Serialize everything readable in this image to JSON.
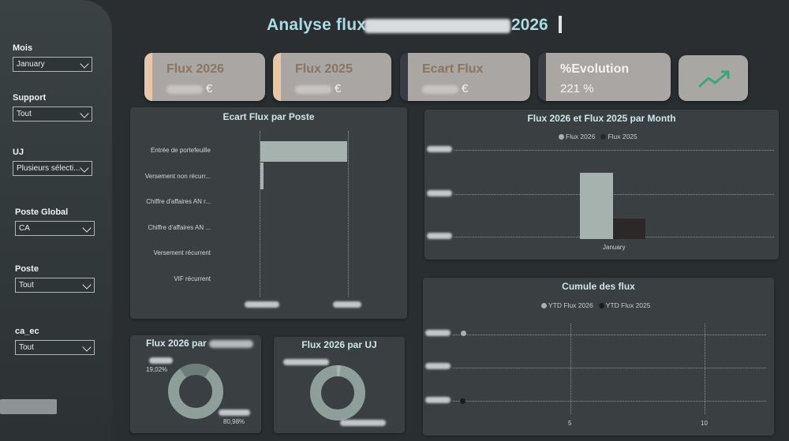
{
  "header": {
    "title_prefix": "Analyse flux",
    "title_suffix": "2026"
  },
  "slicers": [
    {
      "label": "Mois",
      "value": "January"
    },
    {
      "label": "Support",
      "value": "Tout"
    },
    {
      "label": "UJ",
      "value": "Plusieurs sélecti..."
    },
    {
      "label": "Poste Global",
      "value": "CA"
    },
    {
      "label": "Poste",
      "value": "Tout"
    },
    {
      "label": "ca_ec",
      "value": "Tout"
    }
  ],
  "cards": [
    {
      "label": "Flux 2026",
      "value": "€"
    },
    {
      "label": "Flux 2025",
      "value": "€"
    },
    {
      "label": "Ecart Flux",
      "value": "€"
    },
    {
      "label": "%Evolution",
      "value": "221 %"
    }
  ],
  "trend_icon": "trending-up-icon",
  "colors": {
    "accent_title": "#a9dbe4",
    "bar_light": "#a5b2ae",
    "bar_dark": "#2b2827",
    "trend_green": "#3ea579"
  },
  "ecart_chart": {
    "title": "Ecart Flux par Poste",
    "categories": [
      "Entrée de portefeuille",
      "Versement non récurr...",
      "Chiffre d'affaires AN r...",
      "Chiffre d'affaires AN ...",
      "Versement récurrent",
      "VIF récurrent"
    ]
  },
  "month_chart": {
    "title": "Flux 2026 et Flux 2025 par Month",
    "legend": [
      "Flux 2026",
      "Flux 2025"
    ],
    "x_label": "January"
  },
  "cumule_chart": {
    "title": "Cumule des flux",
    "legend": [
      "YTD Flux 2026",
      "YTD Flux 2025"
    ],
    "x_ticks": [
      "5",
      "10"
    ]
  },
  "support_chart": {
    "title": "Flux 2026 par",
    "pct_small": "19,02%",
    "pct_large": "80,98%"
  },
  "uj_chart": {
    "title": "Flux 2026 par UJ"
  },
  "chart_data": [
    {
      "type": "bar",
      "title": "Ecart Flux par Poste",
      "categories": [
        "Entrée de portefeuille",
        "Versement non récurr...",
        "Chiffre d'affaires AN r...",
        "Chiffre d'affaires AN ...",
        "Versement récurrent",
        "VIF récurrent"
      ],
      "values": [
        1.0,
        0.04,
        0,
        0,
        0,
        0
      ]
    },
    {
      "type": "bar",
      "title": "Flux 2026 et Flux 2025 par Month",
      "categories": [
        "January"
      ],
      "series": [
        {
          "name": "Flux 2026",
          "values": [
            3.2
          ]
        },
        {
          "name": "Flux 2025",
          "values": [
            1.0
          ]
        }
      ]
    },
    {
      "type": "pie",
      "title": "Flux 2026 par",
      "values": [
        19.02,
        80.98
      ]
    }
  ]
}
